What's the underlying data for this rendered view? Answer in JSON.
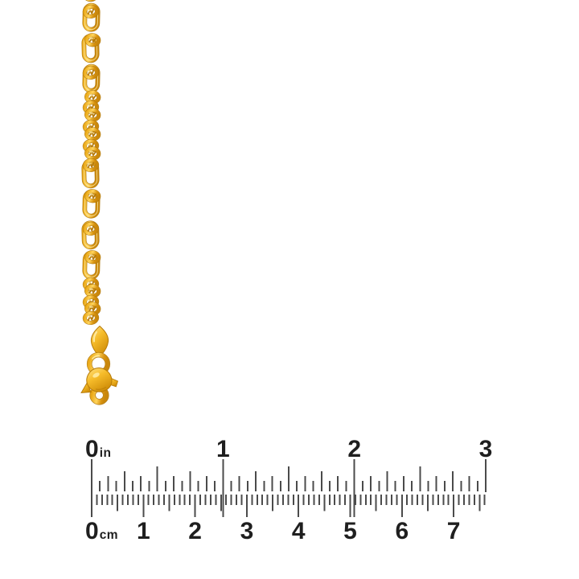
{
  "product": {
    "description": "Yellow gold figaro link chain with teardrop bail, jump ring and lobster claw clasp, photographed on white above an inch and centimeter ruler for scale"
  },
  "colors": {
    "background": "#ffffff",
    "tick": "#4b4b4b",
    "label": "#1f1f1f",
    "gold_edge": "#AD7407",
    "gold_deep": "#C9870B",
    "gold_mid": "#E9A614",
    "gold_bright": "#FFD45C",
    "gold_highlight": "#FFF0B0"
  },
  "ruler": {
    "inch_scale": {
      "unit": "in",
      "labels": [
        "0",
        "1",
        "2",
        "3"
      ],
      "ticks_per_inch": 16
    },
    "cm_scale": {
      "unit": "cm",
      "labels": [
        "0",
        "1",
        "2",
        "3",
        "4",
        "5",
        "6",
        "7"
      ],
      "ticks_per_cm": 10,
      "total_mm": 76
    }
  }
}
